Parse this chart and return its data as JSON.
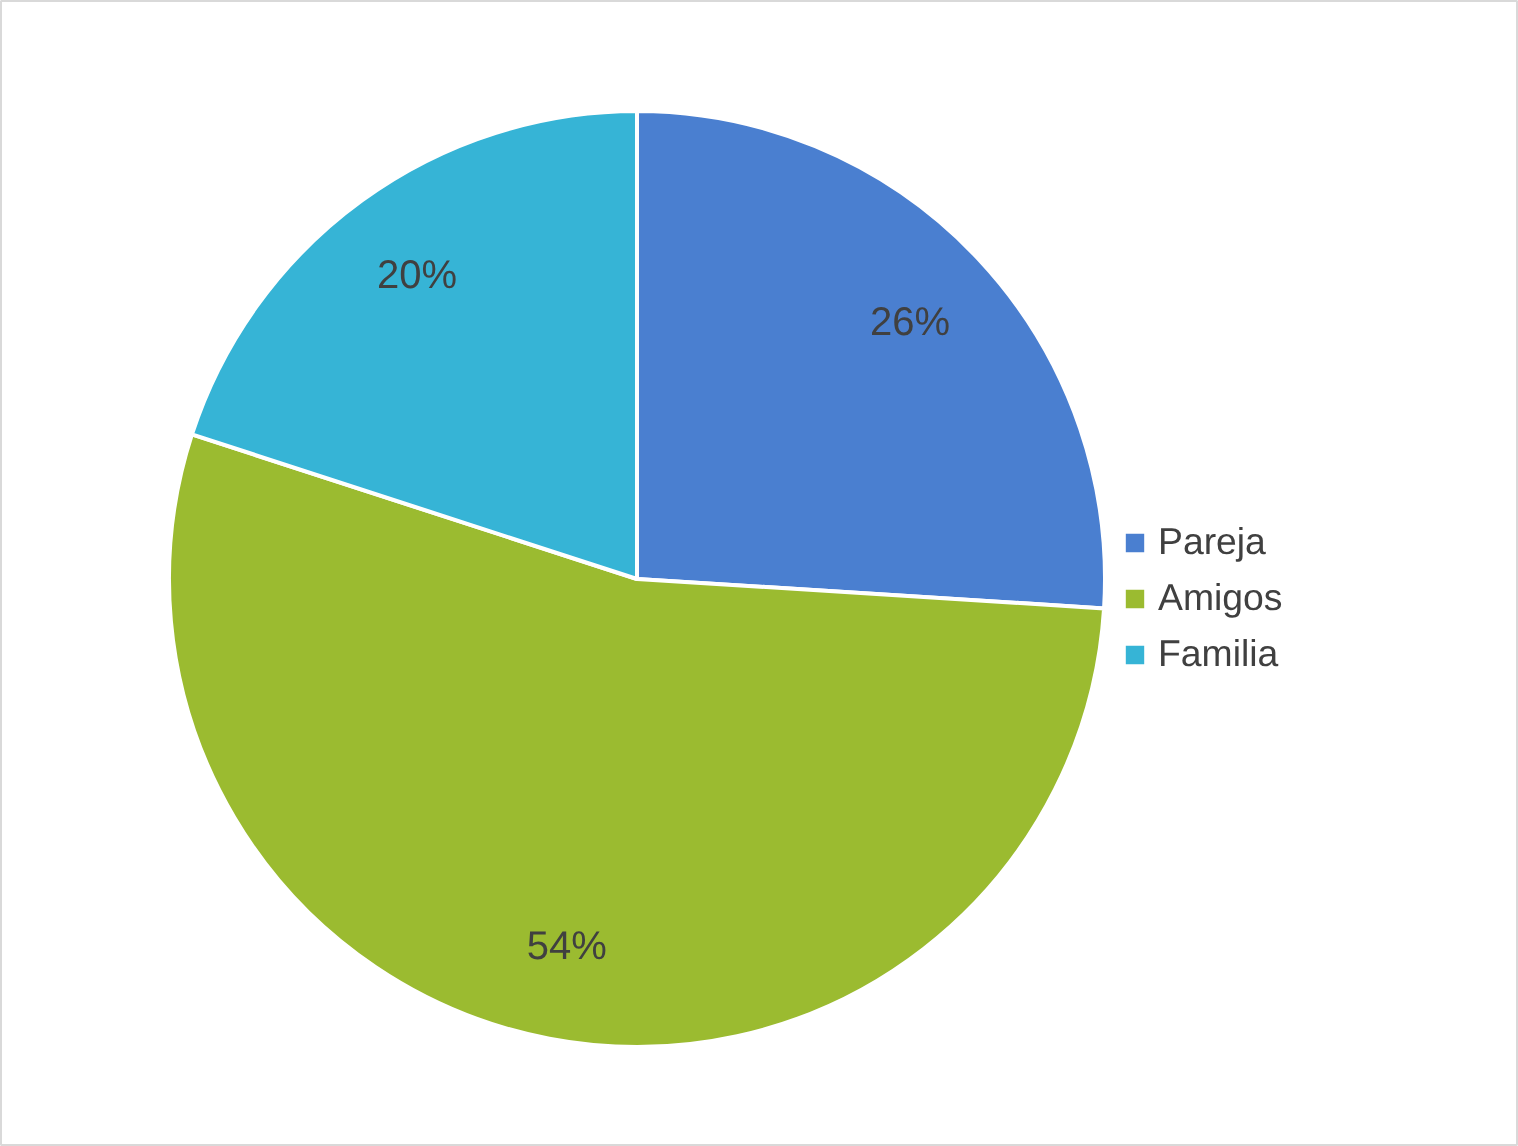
{
  "chart_data": {
    "type": "pie",
    "categories": [
      "Pareja",
      "Amigos",
      "Familia"
    ],
    "values": [
      26,
      54,
      20
    ],
    "colors": [
      "#4a7fd0",
      "#9bbb30",
      "#36b4d6"
    ],
    "value_labels": [
      "26%",
      "54%",
      "20%"
    ],
    "legend": "right"
  }
}
